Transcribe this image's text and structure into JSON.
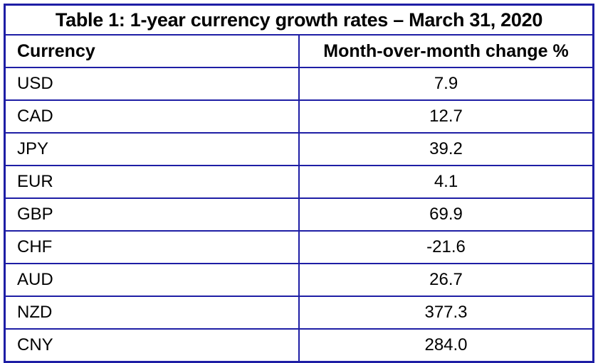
{
  "table": {
    "title": "Table 1: 1-year currency growth rates – March 31, 2020",
    "columns": [
      "Currency",
      "Month-over-month change %"
    ],
    "rows": [
      [
        "USD",
        "7.9"
      ],
      [
        "CAD",
        "12.7"
      ],
      [
        "JPY",
        "39.2"
      ],
      [
        "EUR",
        "4.1"
      ],
      [
        "GBP",
        "69.9"
      ],
      [
        "CHF",
        "-21.6"
      ],
      [
        "AUD",
        "26.7"
      ],
      [
        "NZD",
        "377.3"
      ],
      [
        "CNY",
        "284.0"
      ]
    ]
  },
  "chart_data": {
    "type": "table",
    "title": "Table 1: 1-year currency growth rates – March 31, 2020",
    "columns": [
      "Currency",
      "Month-over-month change %"
    ],
    "categories": [
      "USD",
      "CAD",
      "JPY",
      "EUR",
      "GBP",
      "CHF",
      "AUD",
      "NZD",
      "CNY"
    ],
    "values": [
      7.9,
      12.7,
      39.2,
      4.1,
      69.9,
      -21.6,
      26.7,
      377.3,
      284.0
    ],
    "value_label": "Month-over-month change %"
  },
  "colors": {
    "border": "#1e1ea5",
    "text": "#000000",
    "background": "#ffffff"
  }
}
